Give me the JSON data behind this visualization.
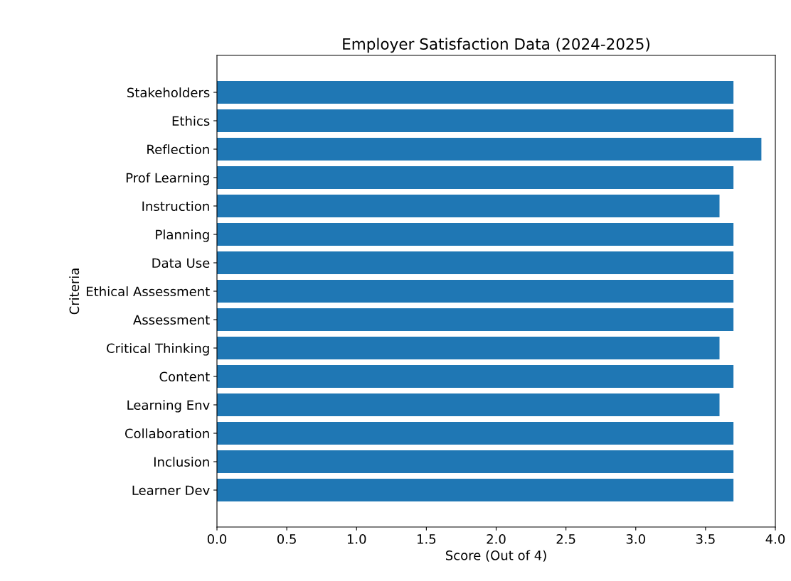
{
  "chart_data": {
    "type": "bar",
    "orientation": "horizontal",
    "title": "Employer Satisfaction Data (2024-2025)",
    "xlabel": "Score (Out of 4)",
    "ylabel": "Criteria",
    "categories": [
      "Stakeholders",
      "Ethics",
      "Reflection",
      "Prof Learning",
      "Instruction",
      "Planning",
      "Data Use",
      "Ethical Assessment",
      "Assessment",
      "Critical Thinking",
      "Content",
      "Learning Env",
      "Collaboration",
      "Inclusion",
      "Learner Dev"
    ],
    "values": [
      3.7,
      3.7,
      3.9,
      3.7,
      3.6,
      3.7,
      3.7,
      3.7,
      3.7,
      3.6,
      3.7,
      3.6,
      3.7,
      3.7,
      3.7
    ],
    "color": "#1f77b4",
    "xlim": [
      0,
      4
    ],
    "xticks": [
      {
        "value": 0,
        "label": "0.0"
      },
      {
        "value": 0.5,
        "label": "0.5"
      },
      {
        "value": 1,
        "label": "1.0"
      },
      {
        "value": 1.5,
        "label": "1.5"
      },
      {
        "value": 2,
        "label": "2.0"
      },
      {
        "value": 2.5,
        "label": "2.5"
      },
      {
        "value": 3,
        "label": "3.0"
      },
      {
        "value": 3.5,
        "label": "3.5"
      },
      {
        "value": 4,
        "label": "4.0"
      }
    ],
    "grid": false
  }
}
